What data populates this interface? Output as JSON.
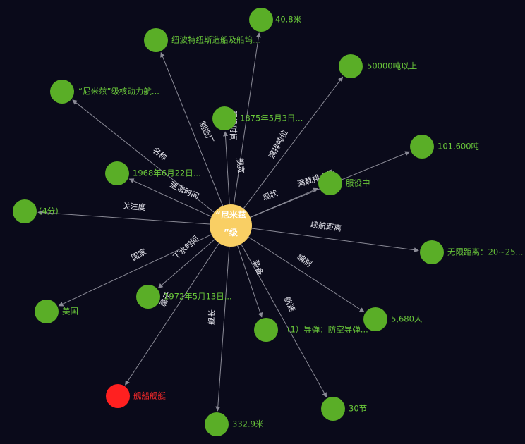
{
  "colors": {
    "background": "#0a0a1a",
    "node": "#5aae27",
    "node_label": "#6ac83a",
    "center": "#f9cf64",
    "red": "#ff2020",
    "edge": "#8a8a96",
    "edge_label": "#e8e8f0"
  },
  "center": {
    "label_line1": "“尼米兹",
    "label_line2": "”级"
  },
  "nodes": [
    {
      "id": "n1",
      "label": "40.8米",
      "relation": "舰宽",
      "color": "green"
    },
    {
      "id": "n2",
      "label": "纽波特纽斯造船及船坞...",
      "relation": "制造厂",
      "color": "green"
    },
    {
      "id": "n3",
      "label": "50000吨以上",
      "relation": "满排吨位",
      "color": "green"
    },
    {
      "id": "n4",
      "label": "“尼米兹”级核动力航...",
      "relation": "名称",
      "color": "green"
    },
    {
      "id": "n5",
      "label": "1875年5月3日...",
      "relation": "服役时间",
      "color": "green"
    },
    {
      "id": "n6",
      "label": "101,600吨",
      "relation": "满载排水量",
      "color": "green"
    },
    {
      "id": "n7",
      "label": "1968年6月22日...",
      "relation": "建造时间",
      "color": "green"
    },
    {
      "id": "n8",
      "label": "服役中",
      "relation": "现状",
      "color": "green"
    },
    {
      "id": "n9",
      "label": "(4分)",
      "relation": "关注度",
      "color": "green"
    },
    {
      "id": "n10",
      "label": "无限距离：20~25...",
      "relation": "续航距离",
      "color": "green"
    },
    {
      "id": "n11",
      "label": "1972年5月13日...",
      "relation": "下水时间",
      "color": "green"
    },
    {
      "id": "n12",
      "label": "美国",
      "relation": "国家",
      "color": "green"
    },
    {
      "id": "n13",
      "label": "5,680人",
      "relation": "编制",
      "color": "green"
    },
    {
      "id": "n14",
      "label": "(1）导弹：防空导弹...",
      "relation": "装备",
      "color": "green"
    },
    {
      "id": "n15",
      "label": "舰船舰艇",
      "relation": "属于",
      "color": "red"
    },
    {
      "id": "n16",
      "label": "30节",
      "relation": "航速",
      "color": "green"
    },
    {
      "id": "n17",
      "label": "332.9米",
      "relation": "舰长",
      "color": "green"
    }
  ]
}
